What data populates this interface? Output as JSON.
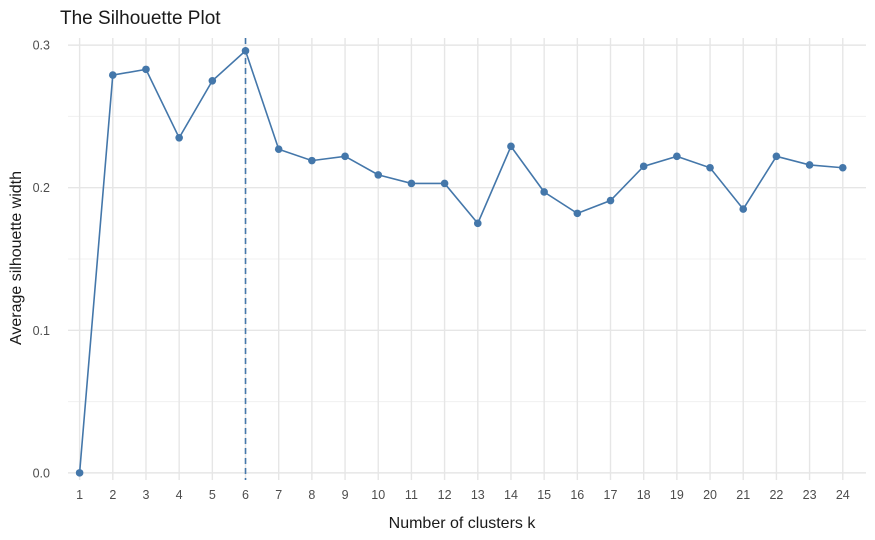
{
  "chart_data": {
    "type": "line",
    "title": "The Silhouette Plot",
    "xlabel": "Number of clusters k",
    "ylabel": "Average silhouette width",
    "x": [
      1,
      2,
      3,
      4,
      5,
      6,
      7,
      8,
      9,
      10,
      11,
      12,
      13,
      14,
      15,
      16,
      17,
      18,
      19,
      20,
      21,
      22,
      23,
      24
    ],
    "series": [
      {
        "values": [
          0.0,
          0.279,
          0.283,
          0.235,
          0.275,
          0.296,
          0.227,
          0.219,
          0.222,
          0.209,
          0.203,
          0.203,
          0.175,
          0.229,
          0.197,
          0.182,
          0.191,
          0.215,
          0.222,
          0.214,
          0.185,
          0.222,
          0.216,
          0.214
        ],
        "color": "#4477AA"
      }
    ],
    "yticks": [
      0.0,
      0.1,
      0.2,
      0.3
    ],
    "ytick_labels": [
      "0.0",
      "0.1",
      "0.2",
      "0.3"
    ],
    "ylim": [
      -0.005,
      0.305
    ],
    "xlim": [
      0.65,
      24.7
    ],
    "optimal_k": 6,
    "optimal_line_color": "#4477AA",
    "grid": true,
    "legend": "none"
  }
}
